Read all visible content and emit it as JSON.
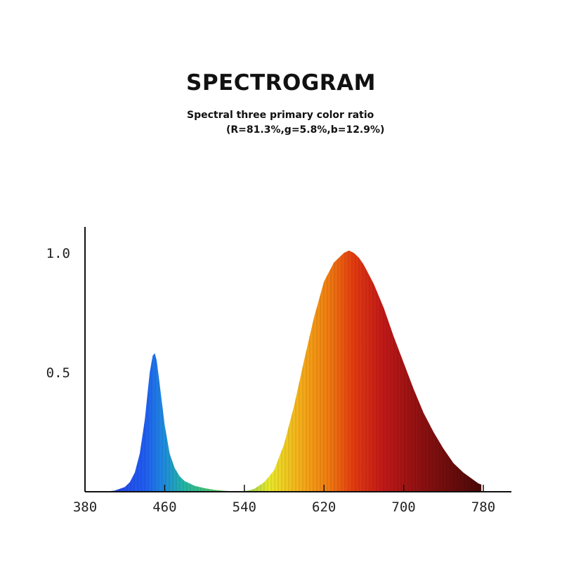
{
  "header": {
    "title": "SPECTROGRAM",
    "subtitle": "Spectral three primary color ratio",
    "ratio": "(R=81.3%,g=5.8%,b=12.9%)"
  },
  "chart_data": {
    "type": "area",
    "title": "SPECTROGRAM",
    "subtitle": "Spectral three primary color ratio (R=81.3%,g=5.8%,b=12.9%)",
    "xlabel": "",
    "ylabel": "",
    "xlim": [
      380,
      780
    ],
    "ylim": [
      0,
      1.1
    ],
    "x_ticks": [
      380,
      460,
      540,
      620,
      700,
      780
    ],
    "y_ticks": [
      0.5,
      1.0
    ],
    "x_tick_labels": [
      "380",
      "460",
      "540",
      "620",
      "700",
      "780"
    ],
    "y_tick_labels": [
      "0.5",
      "1.0"
    ],
    "grid": false,
    "legend": "none",
    "series": [
      {
        "x": [
          400,
          410,
          420,
          425,
          430,
          435,
          440,
          445,
          448,
          450,
          452,
          455,
          460,
          465,
          470,
          475,
          480,
          490,
          500,
          510,
          520,
          530,
          540,
          545,
          550,
          560,
          570,
          580,
          590,
          600,
          610,
          620,
          630,
          640,
          645,
          650,
          655,
          660,
          670,
          680,
          690,
          700,
          710,
          720,
          730,
          740,
          750,
          760,
          770,
          775,
          778
        ],
        "values": [
          0.0,
          0.005,
          0.02,
          0.04,
          0.08,
          0.16,
          0.3,
          0.5,
          0.57,
          0.58,
          0.55,
          0.45,
          0.28,
          0.16,
          0.1,
          0.065,
          0.045,
          0.025,
          0.015,
          0.008,
          0.004,
          0.002,
          0.003,
          0.006,
          0.012,
          0.04,
          0.09,
          0.2,
          0.36,
          0.55,
          0.73,
          0.88,
          0.96,
          1.0,
          1.01,
          1.0,
          0.98,
          0.95,
          0.87,
          0.77,
          0.65,
          0.54,
          0.43,
          0.33,
          0.25,
          0.18,
          0.12,
          0.08,
          0.05,
          0.035,
          0.03
        ]
      }
    ],
    "colors": {
      "axis": "#111111",
      "stops": [
        [
          "#2c3fe0",
          400
        ],
        [
          "#1f5cf0",
          440
        ],
        [
          "#1f88e0",
          458
        ],
        [
          "#22b3a6",
          478
        ],
        [
          "#3fbf7a",
          500
        ],
        [
          "#9fd24a",
          545
        ],
        [
          "#e8e82a",
          565
        ],
        [
          "#f5b01a",
          595
        ],
        [
          "#f07a10",
          625
        ],
        [
          "#e23a10",
          650
        ],
        [
          "#c01818",
          680
        ],
        [
          "#8a1010",
          720
        ],
        [
          "#4a0808",
          778
        ]
      ]
    }
  }
}
